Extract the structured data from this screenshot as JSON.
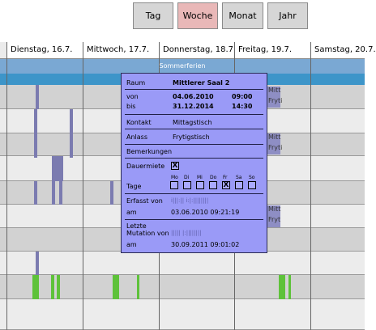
{
  "view_buttons": [
    {
      "label": "Tag",
      "active": false
    },
    {
      "label": "Woche",
      "active": true
    },
    {
      "label": "Monat",
      "active": false
    },
    {
      "label": "Jahr",
      "active": false
    }
  ],
  "calendar": {
    "days": [
      "Dienstag, 16.7.",
      "Mittwoch, 17.7.",
      "Donnerstag, 18.7.",
      "Freitag, 19.7.",
      "Samstag, 20.7."
    ],
    "holiday_label": "Sommerferien",
    "event_labels": [
      "Mitt",
      "Fryti",
      "Mitt",
      "Fryti",
      "Mitt",
      "Fryt"
    ]
  },
  "popup": {
    "raum_label": "Raum",
    "raum_value": "Mittlerer Saal 2",
    "von_label": "von",
    "von_date": "04.06.2010",
    "von_time": "09:00",
    "bis_label": "bis",
    "bis_date": "31.12.2014",
    "bis_time": "14:30",
    "kontakt_label": "Kontakt",
    "kontakt_value": "Mittagstisch",
    "anlass_label": "Anlass",
    "anlass_value": "Frytigstisch",
    "bemerkungen_label": "Bemerkungen",
    "dauermiete_label": "Dauermiete",
    "dauermiete_checked": "X",
    "tage_label": "Tage",
    "day_abbr": [
      "Mo",
      "Di",
      "Mi",
      "Do",
      "Fr",
      "Sa",
      "So"
    ],
    "day_checks": [
      "",
      "",
      "",
      "",
      "X",
      "",
      ""
    ],
    "erfasst_label": "Erfasst von",
    "erfasst_user": "i|||:|| i:|:||||||||",
    "am_label_1": "am",
    "am_value_1": "03.06.2010 09:21:19",
    "mutation_label_1": "Letzte",
    "mutation_label_2": "Mutation von",
    "mutation_user": "||||| |:||||||||",
    "am_label_2": "am",
    "am_value_2": "30.09.2011 09:01:02"
  },
  "colors": {
    "active_button": "#e9b8b8",
    "holiday": "#3d95c9",
    "event_blue": "#7b7bb0",
    "event_green": "#5ec23a",
    "popup_bg": "#9a9af7"
  }
}
